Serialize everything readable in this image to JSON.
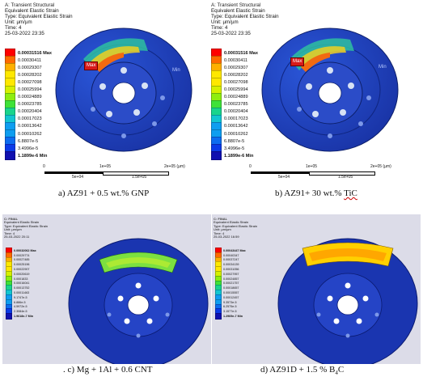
{
  "colors": {
    "background_plot": "#ffffff",
    "panel_bg_small": "#dcdce8",
    "disc_blue": "#1a3bb0",
    "hub_blue": "#2748c4",
    "hole_color": "#d8e2f4",
    "max_tag": "#d81a1a",
    "legend": [
      "#ff0000",
      "#ff6a00",
      "#ffb000",
      "#ffe800",
      "#d6f000",
      "#8eee10",
      "#3fe238",
      "#19d48c",
      "#12c6d0",
      "#0e9ef0",
      "#0c6cf0",
      "#0a3ae8",
      "#1010b0"
    ]
  },
  "panels": {
    "a": {
      "header": [
        "A: Transient Structural",
        "Equivalent Elastic Strain",
        "Type: Equivalent Elastic Strain",
        "Unit: µm/µm",
        "Time: 4",
        "25-03-2022 23:35"
      ],
      "legend": [
        "0.00031516 Max",
        "0.00030411",
        "0.00029307",
        "0.00028202",
        "0.00027098",
        "0.00025994",
        "0.00024889",
        "0.00023785",
        "0.00020404",
        "0.00017023",
        "0.00013642",
        "0.00010262",
        "6.8807e-5",
        "3.4996e-5",
        "1.1899e-6 Min"
      ],
      "max_tag": "Max",
      "min_tag": "Min",
      "scale_ticks_top": [
        "0",
        "1e+05",
        "2e+05 (µm)"
      ],
      "scale_ticks_bottom": [
        "5e+04",
        "1.5e+05"
      ],
      "caption": "a) AZ91 + 0.5 wt.% GNP"
    },
    "b": {
      "header": [
        "A: Transient Structural",
        "Equivalent Elastic Strain",
        "Type: Equivalent Elastic Strain",
        "Unit: µm/µm",
        "Time: 4",
        "25-03-2022 23:35"
      ],
      "legend": [
        "0.00031516 Max",
        "0.00030411",
        "0.00029307",
        "0.00028202",
        "0.00027098",
        "0.00025994",
        "0.00024889",
        "0.00023785",
        "0.00020404",
        "0.00017023",
        "0.00013642",
        "0.00010262",
        "6.8807e-5",
        "3.4996e-5",
        "1.1899e-6 Min"
      ],
      "max_tag": "Max",
      "min_tag": "Min",
      "scale_ticks_top": [
        "0",
        "1e+05",
        "2e+05 (µm)"
      ],
      "scale_ticks_bottom": [
        "5e+04",
        "1.5e+05"
      ],
      "caption_prefix": "b) AZ91+ 30 wt.% ",
      "caption_suffix": "TiC"
    },
    "c": {
      "header": [
        "C: FINAL",
        "Equivalent Elastic Strain",
        "Type: Equivalent Elastic Strain",
        "Unit: µm/µm",
        "Time: 4",
        "25-03-2022 20:11"
      ],
      "legend": [
        "0.00032062 Max",
        "0.00029774",
        "0.00027485",
        "0.00025196",
        "0.00022907",
        "0.00020619",
        "0.0001833",
        "0.00016041",
        "0.00013752",
        "0.00011463",
        "9.1747e-5",
        "6.886e-5",
        "4.5972e-5",
        "2.3084e-5",
        "1.9618e-7 Min"
      ],
      "caption": ". c) Mg + 1Al + 0.6 CNT"
    },
    "d": {
      "header": [
        "C: FINAL",
        "Equivalent Elastic Strain",
        "Type: Equivalent Elastic Strain",
        "Unit: µm/µm",
        "Time: 4",
        "25-03-2022 16:59"
      ],
      "legend": [
        "0.00043447 Max",
        "0.00040347",
        "0.00037247",
        "0.00034139",
        "0.00031056",
        "0.00027957",
        "0.00024857",
        "0.00021757",
        "0.00018657",
        "0.00015557",
        "0.00012457",
        "9.3573e-5",
        "6.2575e-5",
        "3.1577e-5",
        "1.2969e-7 Min"
      ],
      "caption_prefix": "d) AZ91D + 1.5 % B",
      "caption_sub": "4",
      "caption_suffix": "C"
    }
  }
}
